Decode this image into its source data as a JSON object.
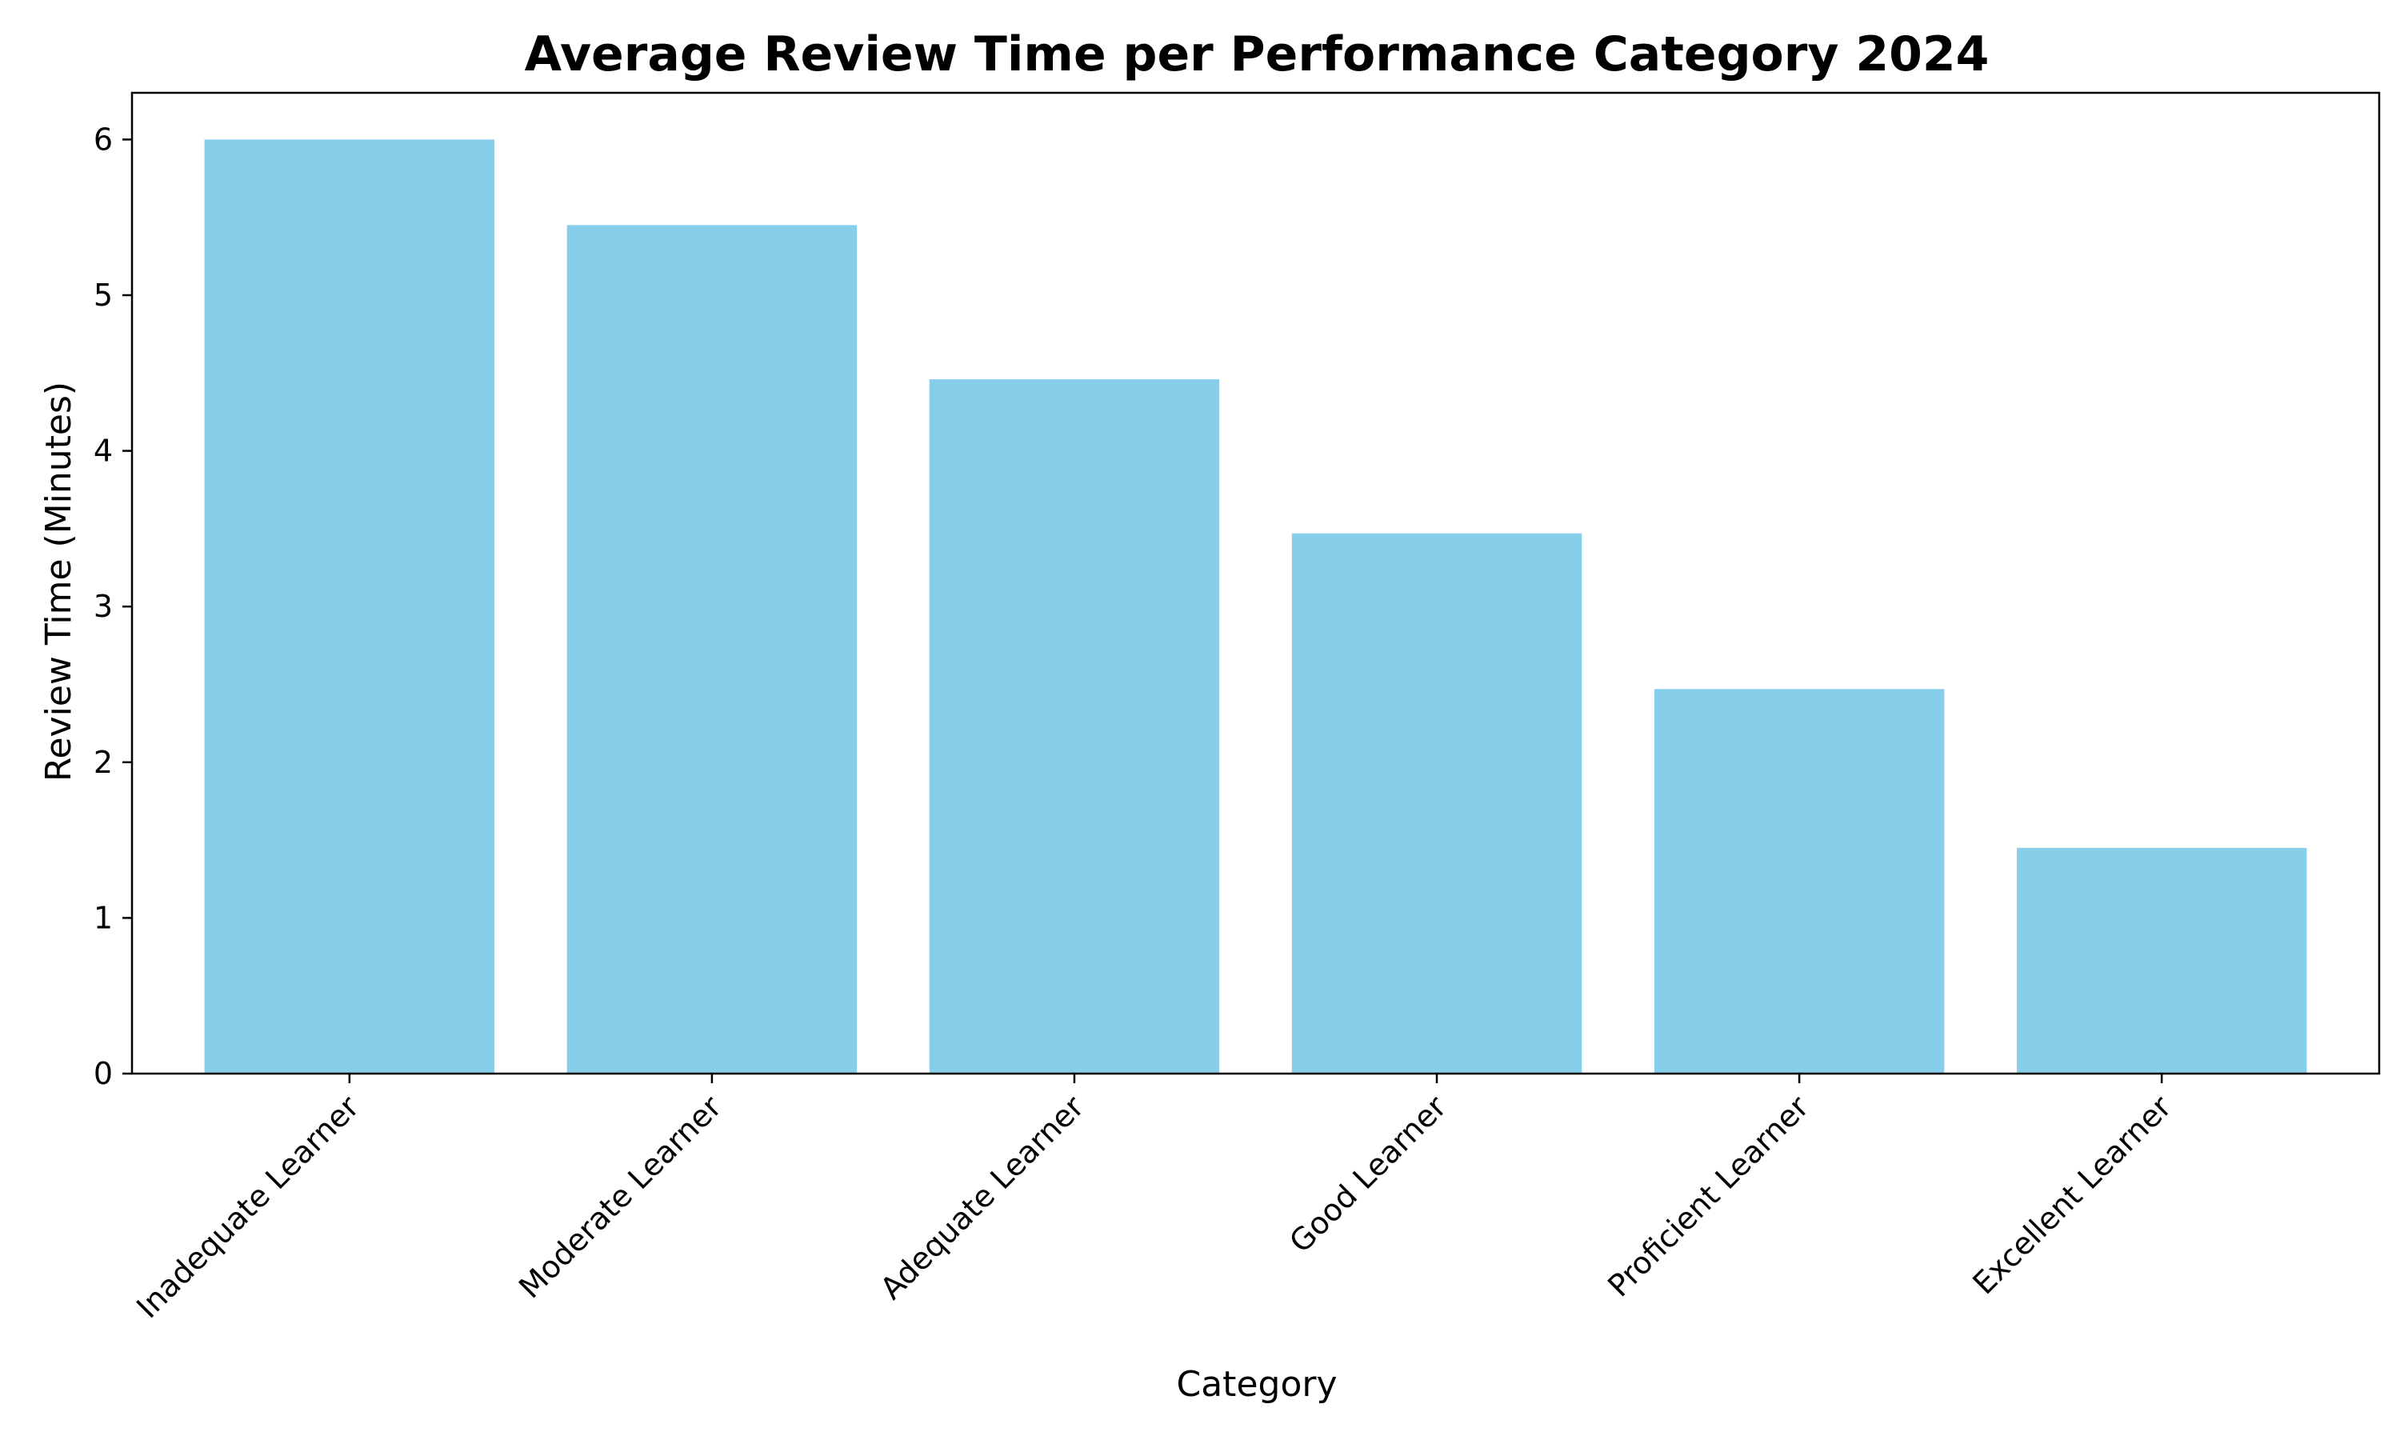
{
  "chart_data": {
    "type": "bar",
    "title": "Average Review Time per Performance Category 2024",
    "xlabel": "Category",
    "ylabel": "Review Time (Minutes)",
    "categories": [
      "Inadequate Learner",
      "Moderate Learner",
      "Adequate Learner",
      "Good Learner",
      "Proficient Learner",
      "Excellent Learner"
    ],
    "values": [
      6.0,
      5.45,
      4.46,
      3.47,
      2.47,
      1.45
    ],
    "ylim": [
      0,
      6.3
    ],
    "yticks": [
      0,
      1,
      2,
      3,
      4,
      5,
      6
    ],
    "grid": false,
    "bar_color": "#87CEEB",
    "axis_color": "#000000"
  }
}
